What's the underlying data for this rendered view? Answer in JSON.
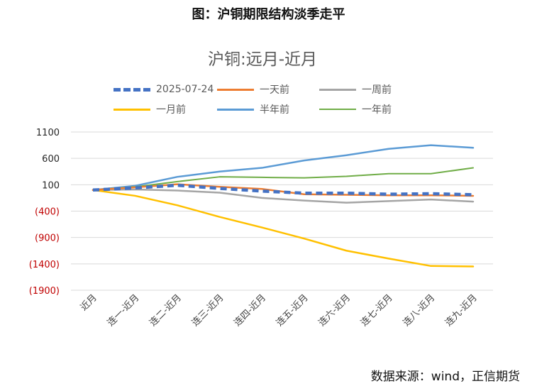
{
  "figure_title": "图：沪铜期限结构淡季走平",
  "source_note": "数据来源：wind，正信期货",
  "chart_data": {
    "type": "line",
    "title": "沪铜:远月-近月",
    "categories": [
      "近月",
      "连一-近月",
      "连二-近月",
      "连三-近月",
      "连四-近月",
      "连五-近月",
      "连六-近月",
      "连七-近月",
      "连八-近月",
      "连九-近月"
    ],
    "y_tick_labels": [
      "1100",
      "600",
      "100",
      "(400)",
      "(900)",
      "(1400)",
      "(1900)"
    ],
    "ylim": [
      -1900,
      1100
    ],
    "grid": "horizontal",
    "legend_position": "top",
    "series": [
      {
        "name": "2025-07-24",
        "color": "#4472C4",
        "style": "dashed-thick",
        "values": [
          0,
          40,
          90,
          30,
          -20,
          -60,
          -60,
          -80,
          -70,
          -90
        ]
      },
      {
        "name": "一天前",
        "color": "#ED7D31",
        "style": "solid",
        "values": [
          0,
          50,
          110,
          60,
          20,
          -80,
          -90,
          -100,
          -100,
          -110
        ]
      },
      {
        "name": "一周前",
        "color": "#A5A5A5",
        "style": "solid",
        "values": [
          0,
          10,
          -10,
          -50,
          -150,
          -200,
          -240,
          -210,
          -180,
          -220
        ]
      },
      {
        "name": "一月前",
        "color": "#FFC000",
        "style": "solid",
        "values": [
          0,
          -110,
          -290,
          -510,
          -710,
          -920,
          -1150,
          -1300,
          -1440,
          -1450
        ]
      },
      {
        "name": "半年前",
        "color": "#5B9BD5",
        "style": "solid",
        "values": [
          0,
          80,
          250,
          350,
          420,
          560,
          660,
          780,
          850,
          800
        ]
      },
      {
        "name": "一年前",
        "color": "#70AD47",
        "style": "solid",
        "values": [
          0,
          60,
          160,
          250,
          240,
          230,
          260,
          310,
          310,
          420
        ]
      }
    ]
  }
}
